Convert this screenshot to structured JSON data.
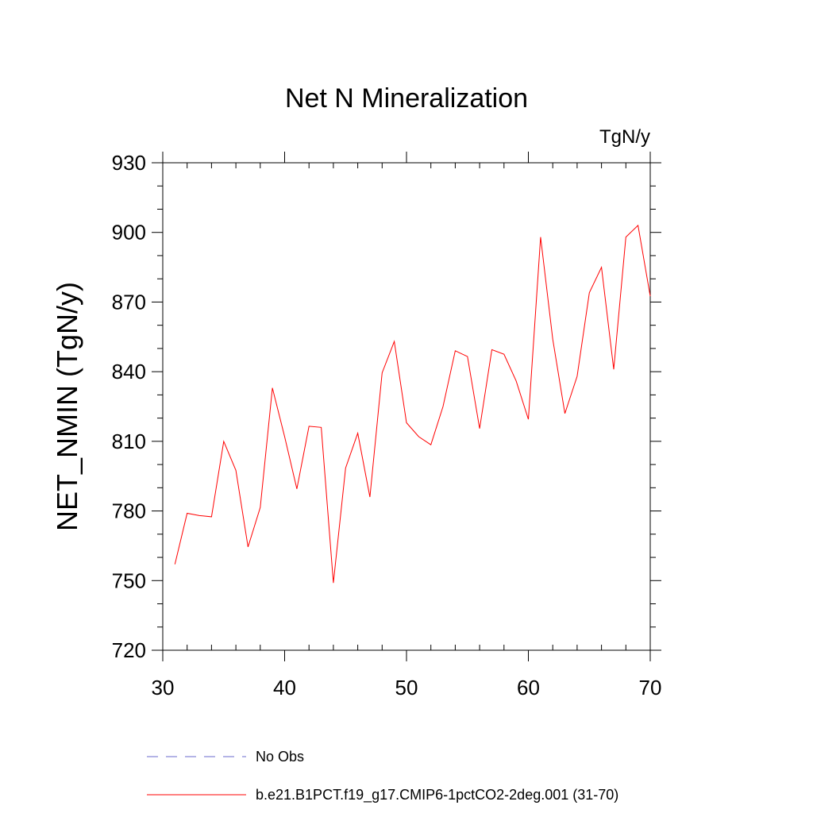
{
  "chart_data": {
    "type": "line",
    "title": "Net N Mineralization",
    "units_label": "TgN/y",
    "xlabel": "",
    "ylabel": "NET_NMIN  (TgN/y)",
    "xlim": [
      30,
      70
    ],
    "ylim": [
      720,
      930
    ],
    "x_ticks": [
      30,
      40,
      50,
      60,
      70
    ],
    "y_ticks": [
      720,
      750,
      780,
      810,
      840,
      870,
      900,
      930
    ],
    "x_tick_labels": [
      "30",
      "40",
      "50",
      "60",
      "70"
    ],
    "y_tick_labels": [
      "720",
      "750",
      "780",
      "810",
      "840",
      "870",
      "900",
      "930"
    ],
    "grid": false,
    "legend_position": "bottom",
    "series": [
      {
        "name": "No Obs",
        "color": "#6a6acd",
        "dash": "dashed",
        "x": [],
        "values": []
      },
      {
        "name": "b.e21.B1PCT.f19_g17.CMIP6-1pctCO2-2deg.001 (31-70)",
        "color": "#ff0000",
        "dash": "solid",
        "x": [
          31,
          32,
          33,
          34,
          35,
          36,
          37,
          38,
          39,
          40,
          41,
          42,
          43,
          44,
          45,
          46,
          47,
          48,
          49,
          50,
          51,
          52,
          53,
          54,
          55,
          56,
          57,
          58,
          59,
          60,
          61,
          62,
          63,
          64,
          65,
          66,
          67,
          68,
          69,
          70
        ],
        "values": [
          757,
          779,
          778,
          777.5,
          810,
          797.5,
          764.5,
          781.5,
          833,
          812,
          789.5,
          816.5,
          816,
          749,
          798.5,
          813.5,
          786,
          839.5,
          853,
          818,
          812,
          808.5,
          825,
          849,
          846.5,
          815.5,
          849.5,
          847.5,
          836,
          819.5,
          898,
          854,
          822,
          838,
          874,
          885,
          841,
          898,
          903,
          872.5
        ]
      }
    ]
  }
}
